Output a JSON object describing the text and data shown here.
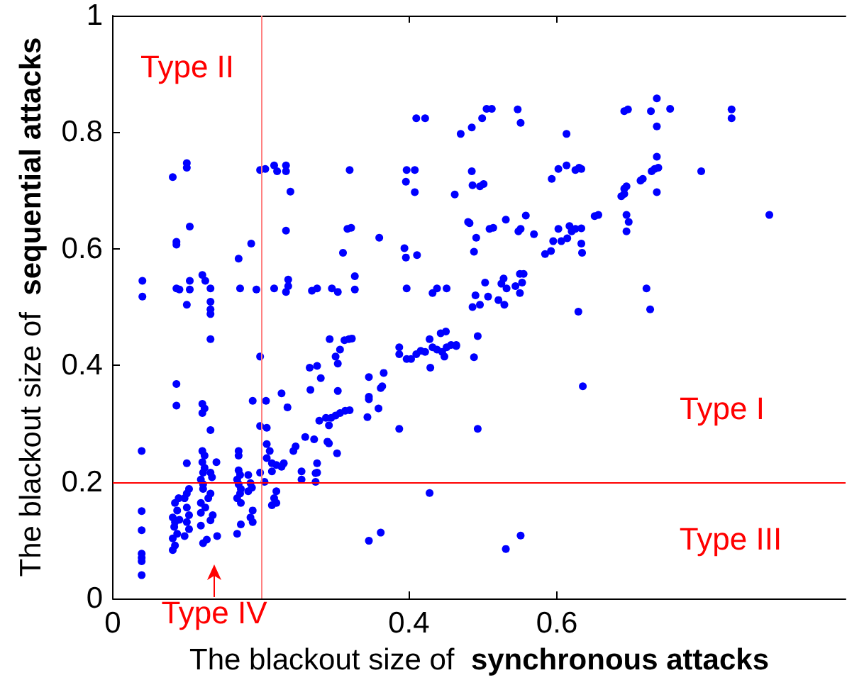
{
  "chart_data": {
    "type": "scatter",
    "xlabel": "The blackout size of synchronous attacks",
    "ylabel": "The blackout size of sequential attacks",
    "x": [
      0.04,
      0.04,
      0.081,
      0.1,
      0.1,
      0.104,
      0.086,
      0.086,
      0.086,
      0.09,
      0.104,
      0.104,
      0.121,
      0.125,
      0.132,
      0.1,
      0.132,
      0.17,
      0.187,
      0.172,
      0.194,
      0.199,
      0.206,
      0.218,
      0.222,
      0.234,
      0.234,
      0.24,
      0.234,
      0.218,
      0.234,
      0.237,
      0.237,
      0.269,
      0.276,
      0.296,
      0.304,
      0.327,
      0.327,
      0.311,
      0.317,
      0.322,
      0.32,
      0.36,
      0.394,
      0.396,
      0.411,
      0.397,
      0.396,
      0.397,
      0.408,
      0.408,
      0.41,
      0.422,
      0.432,
      0.438,
      0.451,
      0.462,
      0.47,
      0.48,
      0.485,
      0.499,
      0.505,
      0.512,
      0.547,
      0.551,
      0.613,
      0.691,
      0.696,
      0.727,
      0.735,
      0.735,
      0.753,
      0.836,
      0.836,
      0.485,
      0.486,
      0.496,
      0.501,
      0.593,
      0.602,
      0.613,
      0.625,
      0.63,
      0.633,
      0.687,
      0.691,
      0.694,
      0.691,
      0.713,
      0.716,
      0.728,
      0.732,
      0.737,
      0.735,
      0.735,
      0.795,
      0.887,
      0.482,
      0.491,
      0.488,
      0.509,
      0.514,
      0.531,
      0.558,
      0.548,
      0.551,
      0.569,
      0.584,
      0.592,
      0.595,
      0.606,
      0.614,
      0.602,
      0.617,
      0.625,
      0.633,
      0.62,
      0.633,
      0.634,
      0.651,
      0.656,
      0.694,
      0.697,
      0.694,
      0.721,
      0.726,
      0.629,
      0.503,
      0.49,
      0.507,
      0.486,
      0.496,
      0.521,
      0.529,
      0.525,
      0.528,
      0.55,
      0.555,
      0.553,
      0.55,
      0.544,
      0.532,
      0.039,
      0.039,
      0.039,
      0.039,
      0.039,
      0.039,
      0.039,
      0.086,
      0.086,
      0.1,
      0.132,
      0.132,
      0.132,
      0.121,
      0.124,
      0.121,
      0.132,
      0.121,
      0.124,
      0.121,
      0.124,
      0.14,
      0.17,
      0.17,
      0.199,
      0.189,
      0.207,
      0.199,
      0.208,
      0.228,
      0.236,
      0.266,
      0.276,
      0.281,
      0.267,
      0.293,
      0.301,
      0.304,
      0.307,
      0.313,
      0.319,
      0.323,
      0.304,
      0.29,
      0.272,
      0.303,
      0.274,
      0.274,
      0.255,
      0.255,
      0.346,
      0.346,
      0.346,
      0.344,
      0.359,
      0.362,
      0.364,
      0.366,
      0.346,
      0.362,
      0.387,
      0.428,
      0.387,
      0.387,
      0.397,
      0.403,
      0.41,
      0.416,
      0.422,
      0.432,
      0.438,
      0.445,
      0.448,
      0.451,
      0.457,
      0.464,
      0.429,
      0.428,
      0.443,
      0.45,
      0.493,
      0.488,
      0.464,
      0.635,
      0.493,
      0.531,
      0.551,
      0.244,
      0.122,
      0.132,
      0.134,
      0.103,
      0.1,
      0.097,
      0.089,
      0.084,
      0.087,
      0.081,
      0.084,
      0.083,
      0.087,
      0.081,
      0.084,
      0.081,
      0.1,
      0.103,
      0.1,
      0.103,
      0.097,
      0.09,
      0.119,
      0.122,
      0.122,
      0.132,
      0.129,
      0.119,
      0.125,
      0.119,
      0.135,
      0.132,
      0.119,
      0.127,
      0.122,
      0.141,
      0.17,
      0.172,
      0.168,
      0.17,
      0.173,
      0.172,
      0.168,
      0.173,
      0.183,
      0.186,
      0.188,
      0.183,
      0.189,
      0.186,
      0.189,
      0.173,
      0.168,
      0.208,
      0.212,
      0.208,
      0.215,
      0.221,
      0.228,
      0.231,
      0.215,
      0.199,
      0.205,
      0.221,
      0.218,
      0.215,
      0.221,
      0.247,
      0.26,
      0.279,
      0.288,
      0.295,
      0.301,
      0.307,
      0.314,
      0.32,
      0.292,
      0.292,
      0.276,
      0.276
    ],
    "values": [
      0.545,
      0.518,
      0.723,
      0.747,
      0.739,
      0.638,
      0.612,
      0.607,
      0.532,
      0.53,
      0.545,
      0.53,
      0.555,
      0.545,
      0.532,
      0.504,
      0.509,
      0.583,
      0.609,
      0.532,
      0.53,
      0.735,
      0.737,
      0.743,
      0.733,
      0.743,
      0.733,
      0.698,
      0.631,
      0.532,
      0.526,
      0.536,
      0.547,
      0.528,
      0.532,
      0.532,
      0.526,
      0.553,
      0.53,
      0.593,
      0.634,
      0.636,
      0.735,
      0.619,
      0.601,
      0.585,
      0.589,
      0.532,
      0.715,
      0.735,
      0.735,
      0.697,
      0.824,
      0.824,
      0.524,
      0.532,
      0.532,
      0.693,
      0.797,
      0.646,
      0.808,
      0.824,
      0.84,
      0.84,
      0.839,
      0.816,
      0.797,
      0.836,
      0.839,
      0.836,
      0.858,
      0.81,
      0.84,
      0.839,
      0.824,
      0.733,
      0.709,
      0.707,
      0.711,
      0.72,
      0.737,
      0.743,
      0.735,
      0.739,
      0.737,
      0.69,
      0.703,
      0.707,
      0.694,
      0.717,
      0.72,
      0.733,
      0.737,
      0.739,
      0.758,
      0.697,
      0.733,
      0.658,
      0.644,
      0.619,
      0.595,
      0.634,
      0.636,
      0.65,
      0.657,
      0.63,
      0.634,
      0.625,
      0.591,
      0.596,
      0.613,
      0.613,
      0.618,
      0.634,
      0.639,
      0.634,
      0.635,
      0.63,
      0.609,
      0.593,
      0.656,
      0.658,
      0.658,
      0.646,
      0.63,
      0.532,
      0.496,
      0.492,
      0.542,
      0.52,
      0.518,
      0.5,
      0.504,
      0.512,
      0.504,
      0.54,
      0.549,
      0.557,
      0.557,
      0.542,
      0.524,
      0.536,
      0.532,
      0.253,
      0.15,
      0.117,
      0.077,
      0.07,
      0.064,
      0.04,
      0.368,
      0.331,
      0.232,
      0.496,
      0.488,
      0.445,
      0.334,
      0.326,
      0.318,
      0.289,
      0.253,
      0.245,
      0.234,
      0.224,
      0.234,
      0.253,
      0.245,
      0.415,
      0.339,
      0.339,
      0.296,
      0.293,
      0.352,
      0.328,
      0.396,
      0.399,
      0.378,
      0.358,
      0.445,
      0.415,
      0.403,
      0.427,
      0.443,
      0.445,
      0.446,
      0.356,
      0.269,
      0.273,
      0.249,
      0.215,
      0.2,
      0.218,
      0.204,
      0.38,
      0.346,
      0.342,
      0.311,
      0.326,
      0.361,
      0.364,
      0.387,
      0.099,
      0.113,
      0.291,
      0.181,
      0.431,
      0.419,
      0.411,
      0.411,
      0.419,
      0.425,
      0.423,
      0.431,
      0.427,
      0.423,
      0.415,
      0.431,
      0.435,
      0.435,
      0.396,
      0.445,
      0.455,
      0.458,
      0.45,
      0.414,
      0.433,
      0.364,
      0.291,
      0.085,
      0.108,
      0.253,
      0.216,
      0.216,
      0.208,
      0.188,
      0.18,
      0.172,
      0.172,
      0.164,
      0.151,
      0.139,
      0.131,
      0.123,
      0.111,
      0.103,
      0.091,
      0.083,
      0.156,
      0.143,
      0.131,
      0.119,
      0.107,
      0.135,
      0.204,
      0.196,
      0.188,
      0.18,
      0.172,
      0.164,
      0.156,
      0.147,
      0.143,
      0.134,
      0.125,
      0.101,
      0.095,
      0.107,
      0.22,
      0.212,
      0.204,
      0.196,
      0.188,
      0.18,
      0.172,
      0.164,
      0.212,
      0.198,
      0.19,
      0.184,
      0.151,
      0.139,
      0.131,
      0.127,
      0.111,
      0.265,
      0.253,
      0.241,
      0.232,
      0.229,
      0.226,
      0.232,
      0.218,
      0.216,
      0.2,
      0.184,
      0.172,
      0.16,
      0.164,
      0.261,
      0.277,
      0.305,
      0.31,
      0.31,
      0.314,
      0.318,
      0.322,
      0.323,
      0.297,
      0.266,
      0.232,
      0.216
    ],
    "color": "#0000ff",
    "marker": "circle",
    "xlim": [
      0,
      0.99
    ],
    "xticks": [
      0,
      {
        "value": 0.2,
        "label": null
      },
      0.4,
      0.6
    ],
    "ylim": [
      0,
      1
    ],
    "yticks": [
      0,
      0.2,
      0.4,
      0.6,
      0.8,
      1
    ],
    "ref_lines": [
      {
        "axis": "x",
        "value": 0.2,
        "color": "#ff8080"
      },
      {
        "axis": "y",
        "value": 0.2,
        "color": "#ff0000"
      }
    ],
    "annotations": [
      "Type II",
      "Type I",
      "Type III",
      "Type IV"
    ]
  }
}
